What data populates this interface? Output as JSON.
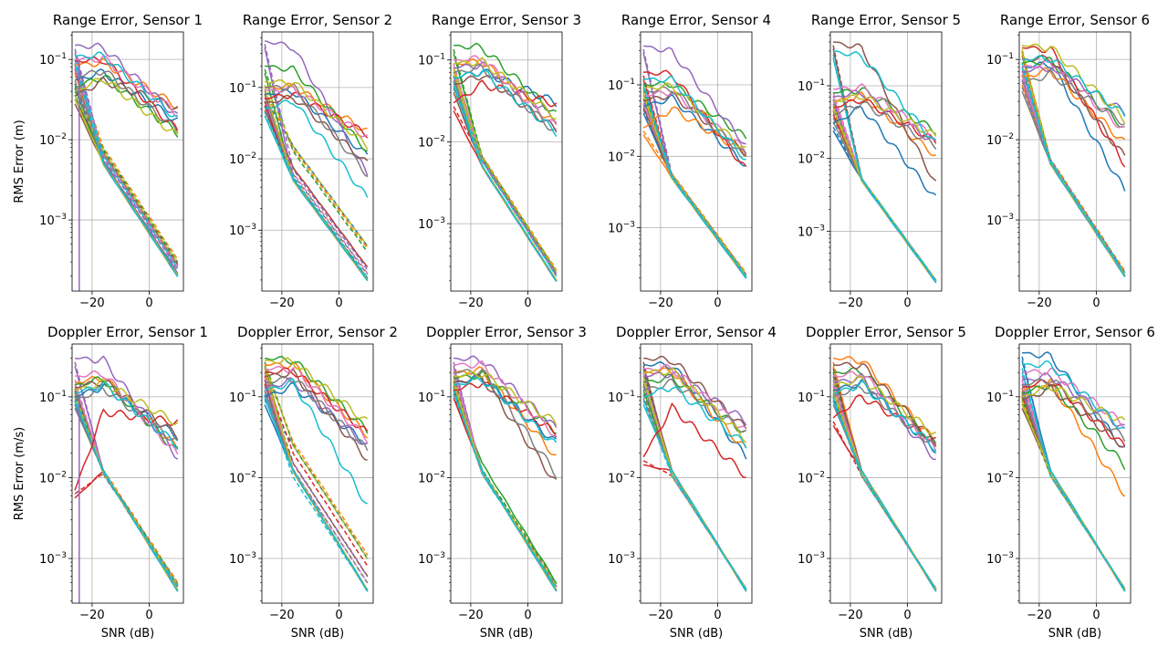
{
  "chart_data": {
    "type": "line",
    "rows": 2,
    "cols": 6,
    "yscale": "log",
    "grid": true,
    "legend": "none",
    "x_label": "SNR (dB)",
    "x_ticks": [
      -20,
      0
    ],
    "colors": [
      "#1f77b4",
      "#ff7f0e",
      "#2ca02c",
      "#d62728",
      "#9467bd",
      "#8c564b",
      "#e377c2",
      "#7f7f7f",
      "#bcbd22",
      "#17becf"
    ],
    "x": [
      -26,
      -25,
      -24,
      -23,
      -22,
      -21,
      -20,
      -19,
      -18,
      -17,
      -16,
      -15,
      -14,
      -13,
      -12,
      -11,
      -10,
      -9,
      -8,
      -7,
      -6,
      -5,
      -4,
      -3,
      -2,
      -1,
      0,
      1,
      2,
      3,
      4,
      5,
      6,
      7,
      8,
      9,
      10
    ],
    "panels": [
      {
        "title": "Range Error, Sensor 1",
        "ylabel": "RMS Error (m)",
        "xlim": [
          -27,
          12
        ],
        "ylim": [
          0.00013,
          0.22
        ],
        "yticks": [
          "10^-3",
          "10^-2",
          "10^-1"
        ],
        "solid_end": [
          0.017,
          0.026,
          0.012,
          0.013,
          0.019,
          0.025,
          0.021,
          0.013,
          0.011,
          0.018
        ],
        "solid_start": [
          0.055,
          0.085,
          0.045,
          0.095,
          0.15,
          0.035,
          0.1,
          0.06,
          0.04,
          0.11
        ],
        "dashed_end": [
          0.00028,
          0.00032,
          0.0003,
          0.00026,
          0.00024,
          0.00028,
          0.00026,
          0.00027,
          0.00029,
          0.00025
        ],
        "final_solid_end": [
          0.0002,
          0.0002,
          0.00021,
          0.0002,
          0.00022,
          0.0002,
          0.0002,
          0.00021,
          0.0002,
          0.0002
        ],
        "drop_series": 4
      },
      {
        "title": "Range Error, Sensor 2",
        "ylabel": "",
        "xlim": [
          -27,
          12
        ],
        "ylim": [
          0.00014,
          0.6
        ],
        "yticks": [
          "10^-3",
          "10^-2",
          "10^-1"
        ],
        "solid_end": [
          0.011,
          0.024,
          0.013,
          0.022,
          0.006,
          0.0085,
          0.02,
          0.006,
          0.015,
          0.0028
        ],
        "solid_start": [
          0.08,
          0.1,
          0.2,
          0.07,
          0.45,
          0.06,
          0.09,
          0.1,
          0.12,
          0.05
        ],
        "dashed_end": [
          0.0006,
          0.00055,
          0.0005,
          0.0003,
          0.00028,
          0.0003,
          0.00025,
          0.00024,
          0.0006,
          0.00022
        ],
        "final_solid_end": [
          0.0002,
          0.00021,
          0.0002,
          0.0002,
          0.0002,
          0.00021,
          0.0002,
          0.0002,
          0.0002,
          0.0002
        ],
        "drop_series": -1
      },
      {
        "title": "Range Error, Sensor 3",
        "ylabel": "",
        "xlim": [
          -27,
          12
        ],
        "ylim": [
          0.00015,
          0.22
        ],
        "yticks": [
          "10^-3",
          "10^-2",
          "10^-1"
        ],
        "solid_end": [
          0.03,
          0.016,
          0.021,
          0.029,
          0.019,
          0.014,
          0.015,
          0.013,
          0.02,
          0.013
        ],
        "solid_start": [
          0.06,
          0.09,
          0.15,
          0.03,
          0.08,
          0.05,
          0.1,
          0.07,
          0.09,
          0.06
        ],
        "dashed_end": [
          0.00025,
          0.00027,
          0.00026,
          0.00024,
          0.00023,
          0.00025,
          0.00024,
          0.00024,
          0.00026,
          0.00023
        ],
        "final_solid_end": [
          0.0002,
          0.0002,
          0.00025,
          0.0002,
          0.0002,
          0.0002,
          0.0002,
          0.0002,
          0.0002,
          0.0002
        ],
        "drop_series": -1
      },
      {
        "title": "Range Error, Sensor 4",
        "ylabel": "",
        "xlim": [
          -27,
          12
        ],
        "ylim": [
          0.00013,
          0.55
        ],
        "yticks": [
          "10^-3",
          "10^-2",
          "10^-1"
        ],
        "solid_end": [
          0.0075,
          0.011,
          0.018,
          0.0065,
          0.014,
          0.011,
          0.012,
          0.01,
          0.012,
          0.009
        ],
        "solid_start": [
          0.05,
          0.025,
          0.1,
          0.15,
          0.35,
          0.06,
          0.07,
          0.08,
          0.09,
          0.12
        ],
        "dashed_end": [
          0.00022,
          0.00023,
          0.00022,
          0.00021,
          0.00022,
          0.00022,
          0.00021,
          0.00022,
          0.00022,
          0.00021
        ],
        "final_solid_end": [
          0.0002,
          0.0002,
          0.0002,
          0.0002,
          0.0002,
          0.0002,
          0.0002,
          0.0002,
          0.0002,
          0.0002
        ],
        "drop_series": -1
      },
      {
        "title": "Range Error, Sensor 5",
        "ylabel": "",
        "xlim": [
          -27,
          12
        ],
        "ylim": [
          0.00015,
          0.55
        ],
        "yticks": [
          "10^-3",
          "10^-2",
          "10^-1"
        ],
        "solid_end": [
          0.0028,
          0.011,
          0.024,
          0.017,
          0.016,
          0.0045,
          0.019,
          0.015,
          0.02,
          0.016
        ],
        "solid_start": [
          0.03,
          0.06,
          0.08,
          0.05,
          0.07,
          0.4,
          0.09,
          0.04,
          0.06,
          0.3
        ],
        "dashed_end": [
          0.00021,
          0.00021,
          0.00021,
          0.00021,
          0.00021,
          0.00021,
          0.00021,
          0.00021,
          0.00021,
          0.00021
        ],
        "final_solid_end": [
          0.0002,
          0.0002,
          0.0002,
          0.0002,
          0.0002,
          0.0002,
          0.0002,
          0.0002,
          0.0002,
          0.0002
        ],
        "drop_series": -1
      },
      {
        "title": "Range Error, Sensor 6",
        "ylabel": "",
        "xlim": [
          -27,
          12
        ],
        "ylim": [
          0.00013,
          0.22
        ],
        "yticks": [
          "10^-3",
          "10^-2",
          "10^-1"
        ],
        "solid_end": [
          0.0023,
          0.009,
          0.014,
          0.005,
          0.022,
          0.006,
          0.013,
          0.016,
          0.018,
          0.02
        ],
        "solid_start": [
          0.08,
          0.06,
          0.09,
          0.14,
          0.07,
          0.1,
          0.08,
          0.05,
          0.15,
          0.1
        ],
        "dashed_end": [
          0.00022,
          0.00023,
          0.00022,
          0.00022,
          0.00022,
          0.00022,
          0.00022,
          0.00022,
          0.00022,
          0.00022
        ],
        "final_solid_end": [
          0.0002,
          0.0002,
          0.0002,
          0.0002,
          0.0002,
          0.0002,
          0.0002,
          0.0002,
          0.0002,
          0.0002
        ],
        "drop_series": -1
      },
      {
        "title": "Doppler Error, Sensor 1",
        "ylabel": "RMS Error (m/s)",
        "xlim": [
          -27,
          12
        ],
        "ylim": [
          0.00028,
          0.45
        ],
        "yticks": [
          "10^-3",
          "10^-2",
          "10^-1"
        ],
        "solid_end": [
          0.032,
          0.023,
          0.021,
          0.048,
          0.018,
          0.033,
          0.019,
          0.027,
          0.047,
          0.025
        ],
        "solid_start": [
          0.1,
          0.15,
          0.14,
          0.007,
          0.3,
          0.13,
          0.18,
          0.09,
          0.12,
          0.11
        ],
        "dashed_end": [
          0.00045,
          0.0005,
          0.00048,
          0.00045,
          0.00047,
          0.00044,
          0.00045,
          0.00045,
          0.00046,
          0.00045
        ],
        "final_solid_end": [
          0.0004,
          0.0004,
          0.0004,
          0.0004,
          0.0004,
          0.0004,
          0.0004,
          0.0004,
          0.0004,
          0.0004
        ],
        "drop_series": 4
      },
      {
        "title": "Doppler Error, Sensor 2",
        "ylabel": "",
        "xlim": [
          -27,
          12
        ],
        "ylim": [
          0.00028,
          0.45
        ],
        "yticks": [
          "10^-3",
          "10^-2",
          "10^-1"
        ],
        "solid_end": [
          0.026,
          0.034,
          0.038,
          0.035,
          0.024,
          0.017,
          0.03,
          0.022,
          0.048,
          0.0045
        ],
        "solid_start": [
          0.1,
          0.25,
          0.3,
          0.2,
          0.13,
          0.18,
          0.22,
          0.15,
          0.28,
          0.12
        ],
        "dashed_end": [
          0.001,
          0.0011,
          0.001,
          0.0008,
          0.0006,
          0.0006,
          0.0005,
          0.0005,
          0.001,
          0.0004
        ],
        "final_solid_end": [
          0.0004,
          0.0004,
          0.0004,
          0.0004,
          0.0004,
          0.0004,
          0.0004,
          0.0004,
          0.0004,
          0.0004
        ],
        "drop_series": -1
      },
      {
        "title": "Doppler Error, Sensor 3",
        "ylabel": "",
        "xlim": [
          -27,
          12
        ],
        "ylim": [
          0.00028,
          0.45
        ],
        "yticks": [
          "10^-3",
          "10^-2",
          "10^-1"
        ],
        "solid_end": [
          0.027,
          0.018,
          0.038,
          0.035,
          0.04,
          0.0085,
          0.033,
          0.011,
          0.047,
          0.025
        ],
        "solid_start": [
          0.15,
          0.2,
          0.17,
          0.12,
          0.3,
          0.15,
          0.25,
          0.2,
          0.18,
          0.14
        ],
        "dashed_end": [
          0.00045,
          0.00048,
          0.0005,
          0.00045,
          0.00045,
          0.00045,
          0.00045,
          0.00045,
          0.00046,
          0.00044
        ],
        "final_solid_end": [
          0.0004,
          0.0004,
          0.0005,
          0.0004,
          0.0004,
          0.0004,
          0.0004,
          0.0004,
          0.0004,
          0.0004
        ],
        "drop_series": -1
      },
      {
        "title": "Doppler Error, Sensor 4",
        "ylabel": "",
        "xlim": [
          -27,
          12
        ],
        "ylim": [
          0.00028,
          0.45
        ],
        "yticks": [
          "10^-3",
          "10^-2",
          "10^-1"
        ],
        "solid_end": [
          0.018,
          0.022,
          0.035,
          0.0105,
          0.05,
          0.04,
          0.037,
          0.037,
          0.03,
          0.025
        ],
        "solid_start": [
          0.25,
          0.2,
          0.15,
          0.018,
          0.18,
          0.3,
          0.22,
          0.12,
          0.2,
          0.1
        ],
        "dashed_end": [
          0.00042,
          0.00042,
          0.00042,
          0.00042,
          0.00042,
          0.00042,
          0.00042,
          0.00042,
          0.00042,
          0.00042
        ],
        "final_solid_end": [
          0.0004,
          0.0004,
          0.0004,
          0.0004,
          0.0004,
          0.0004,
          0.0004,
          0.0004,
          0.0004,
          0.0004
        ],
        "drop_series": -1
      },
      {
        "title": "Doppler Error, Sensor 5",
        "ylabel": "",
        "xlim": [
          -27,
          12
        ],
        "ylim": [
          0.00028,
          0.45
        ],
        "yticks": [
          "10^-3",
          "10^-2",
          "10^-1"
        ],
        "solid_end": [
          0.022,
          0.027,
          0.025,
          0.028,
          0.017,
          0.027,
          0.022,
          0.024,
          0.034,
          0.023
        ],
        "solid_start": [
          0.12,
          0.3,
          0.2,
          0.055,
          0.15,
          0.25,
          0.18,
          0.1,
          0.14,
          0.11
        ],
        "dashed_end": [
          0.00042,
          0.00042,
          0.00042,
          0.00042,
          0.00042,
          0.00042,
          0.00042,
          0.00042,
          0.00042,
          0.00042
        ],
        "final_solid_end": [
          0.0004,
          0.0004,
          0.0004,
          0.0004,
          0.0004,
          0.0004,
          0.0004,
          0.0004,
          0.0004,
          0.0004
        ],
        "drop_series": -1
      },
      {
        "title": "Doppler Error, Sensor 6",
        "ylabel": "",
        "xlim": [
          -27,
          12
        ],
        "ylim": [
          0.00028,
          0.45
        ],
        "yticks": [
          "10^-3",
          "10^-2",
          "10^-1"
        ],
        "solid_end": [
          0.022,
          0.0062,
          0.014,
          0.024,
          0.04,
          0.024,
          0.045,
          0.03,
          0.048,
          0.038
        ],
        "solid_start": [
          0.35,
          0.12,
          0.11,
          0.13,
          0.16,
          0.09,
          0.2,
          0.14,
          0.1,
          0.25
        ],
        "dashed_end": [
          0.00042,
          0.00042,
          0.00042,
          0.00042,
          0.00042,
          0.00042,
          0.00042,
          0.00042,
          0.00042,
          0.00042
        ],
        "final_solid_end": [
          0.0004,
          0.0004,
          0.0004,
          0.0004,
          0.0004,
          0.0004,
          0.0004,
          0.0004,
          0.0004,
          0.0004
        ],
        "drop_series": -1
      }
    ]
  }
}
